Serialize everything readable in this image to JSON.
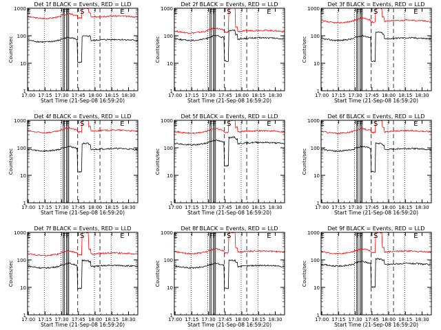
{
  "chart_data": [
    {
      "type": "line",
      "title": "Det 1f BLACK = Events, RED = LLD",
      "xlabel": "Start Time (21-Sep-08 16:59:20)",
      "ylabel": "Counts/sec",
      "yscale": "log",
      "ylim": [
        1,
        1000
      ],
      "yticks": [
        "1",
        "10",
        "100",
        "1000"
      ],
      "xticks": [
        "17:00",
        "17:15",
        "17:30",
        "17:45",
        "18:00",
        "18:15",
        "18:30"
      ],
      "xlim_minutes": [
        0,
        99
      ],
      "markers": [
        {
          "label": "E",
          "at_min": 1
        },
        {
          "label": "F",
          "at_min": 33
        },
        {
          "label": "F",
          "at_min": 36
        },
        {
          "label": "S",
          "at_min": 49
        },
        {
          "label": "E",
          "at_min": 85
        }
      ],
      "dotted_lines_min": [
        15,
        30,
        60,
        75
      ],
      "dashed_lines_min": [
        45,
        65
      ],
      "solid_lines_min": [
        32,
        33,
        35,
        36,
        37
      ],
      "series": [
        {
          "color": "#ff0000",
          "base_level": 500,
          "flare_peak": 1000
        },
        {
          "color": "#000000",
          "base_level": 70,
          "flare_peak": 80
        }
      ]
    },
    {
      "type": "line",
      "title": "Det 2f BLACK = Events, RED = LLD",
      "xlabel": "Start Time (21-Sep-08 16:59:20)",
      "ylabel": "Counts/sec",
      "yscale": "log",
      "ylim": [
        1,
        1000
      ],
      "yticks": [
        "1",
        "10",
        "100",
        "1000"
      ],
      "xticks": [
        "17:00",
        "17:15",
        "17:30",
        "17:45",
        "18:00",
        "18:15",
        "18:30"
      ],
      "xlim_minutes": [
        0,
        99
      ],
      "markers": [
        {
          "label": "E",
          "at_min": 1
        },
        {
          "label": "F",
          "at_min": 33
        },
        {
          "label": "F",
          "at_min": 36
        },
        {
          "label": "S",
          "at_min": 49
        },
        {
          "label": "E",
          "at_min": 85
        }
      ],
      "dotted_lines_min": [
        15,
        30,
        60,
        75
      ],
      "dashed_lines_min": [
        45,
        65
      ],
      "solid_lines_min": [
        32,
        33,
        35,
        36,
        37
      ],
      "series": [
        {
          "color": "#ff0000",
          "base_level": 150,
          "flare_peak": 1000
        },
        {
          "color": "#000000",
          "base_level": 80,
          "flare_peak": 130
        }
      ]
    },
    {
      "type": "line",
      "title": "Det 3f BLACK = Events, RED = LLD",
      "xlabel": "Start Time (21-Sep-08 16:59:20)",
      "ylabel": "Counts/sec",
      "yscale": "log",
      "ylim": [
        1,
        1000
      ],
      "yticks": [
        "1",
        "10",
        "100",
        "1000"
      ],
      "xticks": [
        "17:00",
        "17:15",
        "17:30",
        "17:45",
        "18:00",
        "18:15",
        "18:30"
      ],
      "xlim_minutes": [
        0,
        99
      ],
      "markers": [
        {
          "label": "E",
          "at_min": 1
        },
        {
          "label": "F",
          "at_min": 33
        },
        {
          "label": "F",
          "at_min": 36
        },
        {
          "label": "S",
          "at_min": 49
        },
        {
          "label": "E",
          "at_min": 85
        }
      ],
      "dotted_lines_min": [
        15,
        30,
        60,
        75
      ],
      "dashed_lines_min": [
        45,
        65
      ],
      "solid_lines_min": [
        32,
        33,
        35,
        36,
        37
      ],
      "series": [
        {
          "color": "#ff0000",
          "base_level": 350,
          "flare_peak": 1000
        },
        {
          "color": "#000000",
          "base_level": 80,
          "flare_peak": 110
        }
      ]
    },
    {
      "type": "line",
      "title": "Det 4f BLACK = Events, RED = LLD",
      "xlabel": "Start Time (21-Sep-08 16:59:20)",
      "ylabel": "Counts/sec",
      "yscale": "log",
      "ylim": [
        1,
        1000
      ],
      "yticks": [
        "1",
        "10",
        "100",
        "1000"
      ],
      "xticks": [
        "17:00",
        "17:15",
        "17:30",
        "17:45",
        "18:00",
        "18:15",
        "18:30"
      ],
      "xlim_minutes": [
        0,
        99
      ],
      "markers": [
        {
          "label": "E",
          "at_min": 1
        },
        {
          "label": "F",
          "at_min": 33
        },
        {
          "label": "F",
          "at_min": 36
        },
        {
          "label": "S",
          "at_min": 49
        },
        {
          "label": "E",
          "at_min": 85
        }
      ],
      "dotted_lines_min": [
        15,
        30,
        60,
        75
      ],
      "dashed_lines_min": [
        45,
        65
      ],
      "solid_lines_min": [
        32,
        33,
        35,
        36,
        37
      ],
      "series": [
        {
          "color": "#ff0000",
          "base_level": 420,
          "flare_peak": 1000
        },
        {
          "color": "#000000",
          "base_level": 90,
          "flare_peak": 120
        }
      ]
    },
    {
      "type": "line",
      "title": "Det 5f BLACK = Events, RED = LLD",
      "xlabel": "Start Time (21-Sep-08 16:59:20)",
      "ylabel": "Counts/sec",
      "yscale": "log",
      "ylim": [
        1,
        1000
      ],
      "yticks": [
        "1",
        "10",
        "100",
        "1000"
      ],
      "xticks": [
        "17:00",
        "17:15",
        "17:30",
        "17:45",
        "18:00",
        "18:15",
        "18:30"
      ],
      "xlim_minutes": [
        0,
        99
      ],
      "markers": [
        {
          "label": "E",
          "at_min": 1
        },
        {
          "label": "F",
          "at_min": 33
        },
        {
          "label": "F",
          "at_min": 36
        },
        {
          "label": "S",
          "at_min": 49
        },
        {
          "label": "E",
          "at_min": 85
        }
      ],
      "dotted_lines_min": [
        15,
        30,
        60,
        75
      ],
      "dashed_lines_min": [
        45,
        65
      ],
      "solid_lines_min": [
        32,
        33,
        35,
        36,
        37
      ],
      "series": [
        {
          "color": "#ff0000",
          "base_level": 400,
          "flare_peak": 1000
        },
        {
          "color": "#000000",
          "base_level": 150,
          "flare_peak": 200
        }
      ]
    },
    {
      "type": "line",
      "title": "Det 6f BLACK = Events, RED = LLD",
      "xlabel": "Start Time (21-Sep-08 16:59:20)",
      "ylabel": "Counts/sec",
      "yscale": "log",
      "ylim": [
        1,
        1000
      ],
      "yticks": [
        "1",
        "10",
        "100",
        "1000"
      ],
      "xticks": [
        "17:00",
        "17:15",
        "17:30",
        "17:45",
        "18:00",
        "18:15",
        "18:30"
      ],
      "xlim_minutes": [
        0,
        99
      ],
      "markers": [
        {
          "label": "E",
          "at_min": 1
        },
        {
          "label": "F",
          "at_min": 33
        },
        {
          "label": "F",
          "at_min": 36
        },
        {
          "label": "S",
          "at_min": 49
        },
        {
          "label": "E",
          "at_min": 85
        }
      ],
      "dotted_lines_min": [
        15,
        30,
        60,
        75
      ],
      "dashed_lines_min": [
        45,
        65
      ],
      "solid_lines_min": [
        32,
        33,
        35,
        36,
        37
      ],
      "series": [
        {
          "color": "#ff0000",
          "base_level": 400,
          "flare_peak": 1000
        },
        {
          "color": "#000000",
          "base_level": 90,
          "flare_peak": 120
        }
      ]
    },
    {
      "type": "line",
      "title": "Det 7f BLACK = Events, RED = LLD",
      "xlabel": "Start Time (21-Sep-08 16:59:20)",
      "ylabel": "Counts/sec",
      "yscale": "log",
      "ylim": [
        1,
        1000
      ],
      "yticks": [
        "1",
        "10",
        "100",
        "1000"
      ],
      "xticks": [
        "17:00",
        "17:15",
        "17:30",
        "17:45",
        "18:00",
        "18:15",
        "18:30"
      ],
      "xlim_minutes": [
        0,
        99
      ],
      "markers": [
        {
          "label": "E",
          "at_min": 1
        },
        {
          "label": "F",
          "at_min": 33
        },
        {
          "label": "F",
          "at_min": 36
        },
        {
          "label": "S",
          "at_min": 49
        },
        {
          "label": "E",
          "at_min": 85
        }
      ],
      "dotted_lines_min": [
        15,
        30,
        60,
        75
      ],
      "dashed_lines_min": [
        45,
        65
      ],
      "solid_lines_min": [
        32,
        33,
        35,
        36,
        37
      ],
      "series": [
        {
          "color": "#ff0000",
          "base_level": 170,
          "flare_peak": 1000
        },
        {
          "color": "#000000",
          "base_level": 60,
          "flare_peak": 80
        }
      ]
    },
    {
      "type": "line",
      "title": "Det 8f BLACK = Events, RED = LLD",
      "xlabel": "Start Time (21-Sep-08 16:59:20)",
      "ylabel": "Counts/sec",
      "yscale": "log",
      "ylim": [
        1,
        1000
      ],
      "yticks": [
        "1",
        "10",
        "100",
        "1000"
      ],
      "xticks": [
        "17:00",
        "17:15",
        "17:30",
        "17:45",
        "18:00",
        "18:15",
        "18:30"
      ],
      "xlim_minutes": [
        0,
        99
      ],
      "markers": [
        {
          "label": "E",
          "at_min": 1
        },
        {
          "label": "F",
          "at_min": 33
        },
        {
          "label": "F",
          "at_min": 36
        },
        {
          "label": "S",
          "at_min": 49
        },
        {
          "label": "E",
          "at_min": 85
        }
      ],
      "dotted_lines_min": [
        15,
        30,
        60,
        75
      ],
      "dashed_lines_min": [
        45,
        65
      ],
      "solid_lines_min": [
        32,
        33,
        35,
        36,
        37
      ],
      "series": [
        {
          "color": "#ff0000",
          "base_level": 200,
          "flare_peak": 1000
        },
        {
          "color": "#000000",
          "base_level": 60,
          "flare_peak": 80
        }
      ]
    },
    {
      "type": "line",
      "title": "Det 9f BLACK = Events, RED = LLD",
      "xlabel": "Start Time (21-Sep-08 16:59:20)",
      "ylabel": "Counts/sec",
      "yscale": "log",
      "ylim": [
        1,
        1000
      ],
      "yticks": [
        "1",
        "10",
        "100",
        "1000"
      ],
      "xticks": [
        "17:00",
        "17:15",
        "17:30",
        "17:45",
        "18:00",
        "18:15",
        "18:30"
      ],
      "xlim_minutes": [
        0,
        99
      ],
      "markers": [
        {
          "label": "E",
          "at_min": 1
        },
        {
          "label": "F",
          "at_min": 33
        },
        {
          "label": "F",
          "at_min": 36
        },
        {
          "label": "S",
          "at_min": 49
        },
        {
          "label": "E",
          "at_min": 85
        }
      ],
      "dotted_lines_min": [
        15,
        30,
        60,
        75
      ],
      "dashed_lines_min": [
        45,
        65
      ],
      "solid_lines_min": [
        32,
        33,
        35,
        36,
        37
      ],
      "series": [
        {
          "color": "#ff0000",
          "base_level": 200,
          "flare_peak": 1000
        },
        {
          "color": "#000000",
          "base_level": 70,
          "flare_peak": 90
        }
      ]
    }
  ]
}
